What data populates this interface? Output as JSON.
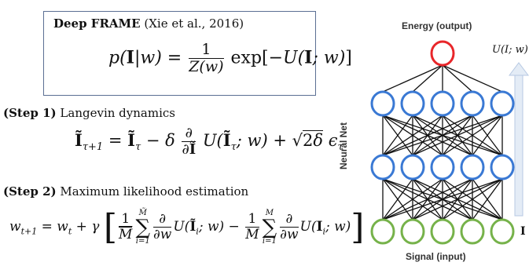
{
  "formula_box": {
    "title_bold": "Deep FRAME",
    "title_rest": " (Xie et al., 2016)"
  },
  "step1": {
    "bold": "(Step 1)",
    "label": " Langevin dynamics"
  },
  "step2": {
    "bold": "(Step 2)",
    "label": " Maximum likelihood estimation"
  },
  "network": {
    "output_label": "Energy (output)",
    "input_label": "Signal (input)",
    "side_label": "Neural Net",
    "arrow_label": "U(I; w)",
    "bottom_letter": "I",
    "layers": [
      1,
      5,
      5,
      5
    ],
    "colors": {
      "output_node": "#e8262a",
      "hidden_node": "#3a79d4",
      "input_node": "#76b24a",
      "edge": "#111111",
      "arrow": "#b7c9e3"
    }
  }
}
